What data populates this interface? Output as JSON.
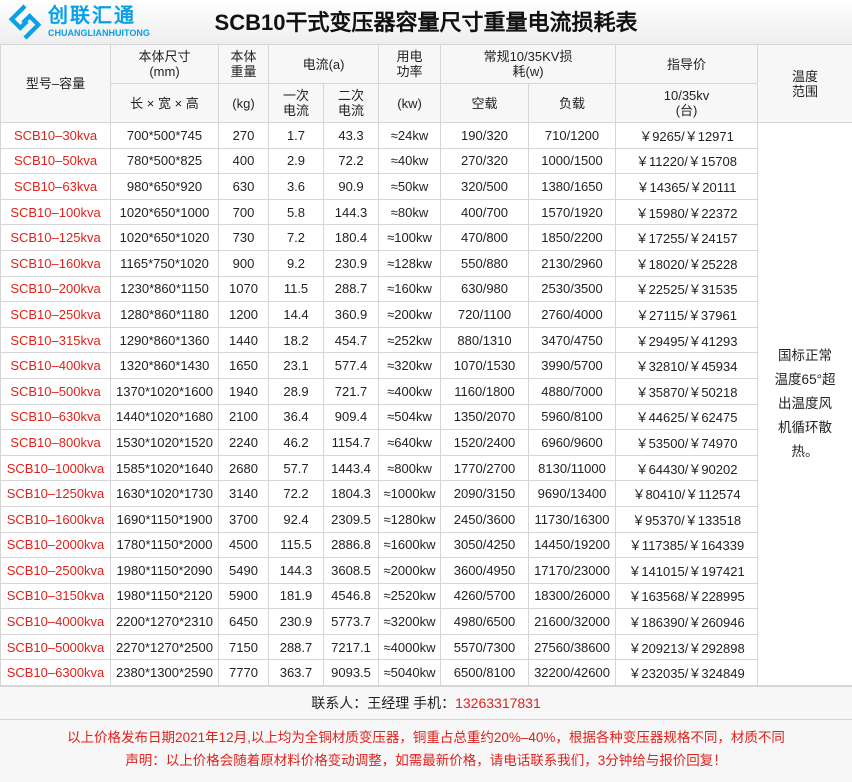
{
  "title": "SCB10干式变压器容量尺寸重量电流损耗表",
  "headers": {
    "model": "型号–容量",
    "size": "本体尺寸",
    "size_unit": "(mm)",
    "size_sub": "长 × 宽 × 高",
    "weight": "本体重量",
    "weight_unit": "(kg)",
    "current": "电流(a)",
    "current_primary": "一次电流",
    "current_secondary": "二次电流",
    "power": "用电功率",
    "power_unit": "(kw)",
    "loss": "常规10/35KV损耗(w)",
    "loss_noload": "空载",
    "loss_load": "负载",
    "price": "指导价",
    "price_sub": "10/35kv (台)",
    "temp": "温度范围"
  },
  "rows": [
    [
      "SCB10–30kva",
      "700*500*745",
      "270",
      "1.7",
      "43.3",
      "≈24kw",
      "190/320",
      "710/1200",
      "￥9265/￥12971"
    ],
    [
      "SCB10–50kva",
      "780*500*825",
      "400",
      "2.9",
      "72.2",
      "≈40kw",
      "270/320",
      "1000/1500",
      "￥11220/￥15708"
    ],
    [
      "SCB10–63kva",
      "980*650*920",
      "630",
      "3.6",
      "90.9",
      "≈50kw",
      "320/500",
      "1380/1650",
      "￥14365/￥20111"
    ],
    [
      "SCB10–100kva",
      "1020*650*1000",
      "700",
      "5.8",
      "144.3",
      "≈80kw",
      "400/700",
      "1570/1920",
      "￥15980/￥22372"
    ],
    [
      "SCB10–125kva",
      "1020*650*1020",
      "730",
      "7.2",
      "180.4",
      "≈100kw",
      "470/800",
      "1850/2200",
      "￥17255/￥24157"
    ],
    [
      "SCB10–160kva",
      "1165*750*1020",
      "900",
      "9.2",
      "230.9",
      "≈128kw",
      "550/880",
      "2130/2960",
      "￥18020/￥25228"
    ],
    [
      "SCB10–200kva",
      "1230*860*1150",
      "1070",
      "11.5",
      "288.7",
      "≈160kw",
      "630/980",
      "2530/3500",
      "￥22525/￥31535"
    ],
    [
      "SCB10–250kva",
      "1280*860*1180",
      "1200",
      "14.4",
      "360.9",
      "≈200kw",
      "720/1100",
      "2760/4000",
      "￥27115/￥37961"
    ],
    [
      "SCB10–315kva",
      "1290*860*1360",
      "1440",
      "18.2",
      "454.7",
      "≈252kw",
      "880/1310",
      "3470/4750",
      "￥29495/￥41293"
    ],
    [
      "SCB10–400kva",
      "1320*860*1430",
      "1650",
      "23.1",
      "577.4",
      "≈320kw",
      "1070/1530",
      "3990/5700",
      "￥32810/￥45934"
    ],
    [
      "SCB10–500kva",
      "1370*1020*1600",
      "1940",
      "28.9",
      "721.7",
      "≈400kw",
      "1160/1800",
      "4880/7000",
      "￥35870/￥50218"
    ],
    [
      "SCB10–630kva",
      "1440*1020*1680",
      "2100",
      "36.4",
      "909.4",
      "≈504kw",
      "1350/2070",
      "5960/8100",
      "￥44625/￥62475"
    ],
    [
      "SCB10–800kva",
      "1530*1020*1520",
      "2240",
      "46.2",
      "1154.7",
      "≈640kw",
      "1520/2400",
      "6960/9600",
      "￥53500/￥74970"
    ],
    [
      "SCB10–1000kva",
      "1585*1020*1640",
      "2680",
      "57.7",
      "1443.4",
      "≈800kw",
      "1770/2700",
      "8130/11000",
      "￥64430/￥90202"
    ],
    [
      "SCB10–1250kva",
      "1630*1020*1730",
      "3140",
      "72.2",
      "1804.3",
      "≈1000kw",
      "2090/3150",
      "9690/13400",
      "￥80410/￥112574"
    ],
    [
      "SCB10–1600kva",
      "1690*1150*1900",
      "3700",
      "92.4",
      "2309.5",
      "≈1280kw",
      "2450/3600",
      "11730/16300",
      "￥95370/￥133518"
    ],
    [
      "SCB10–2000kva",
      "1780*1150*2000",
      "4500",
      "115.5",
      "2886.8",
      "≈1600kw",
      "3050/4250",
      "14450/19200",
      "￥117385/￥164339"
    ],
    [
      "SCB10–2500kva",
      "1980*1150*2090",
      "5490",
      "144.3",
      "3608.5",
      "≈2000kw",
      "3600/4950",
      "17170/23000",
      "￥141015/￥197421"
    ],
    [
      "SCB10–3150kva",
      "1980*1150*2120",
      "5900",
      "181.9",
      "4546.8",
      "≈2520kw",
      "4260/5700",
      "18300/26000",
      "￥163568/￥228995"
    ],
    [
      "SCB10–4000kva",
      "2200*1270*2310",
      "6450",
      "230.9",
      "5773.7",
      "≈3200kw",
      "4980/6500",
      "21600/32000",
      "￥186390/￥260946"
    ],
    [
      "SCB10–5000kva",
      "2270*1270*2500",
      "7150",
      "288.7",
      "7217.1",
      "≈4000kw",
      "5570/7300",
      "27560/38600",
      "￥209213/￥292898"
    ],
    [
      "SCB10–6300kva",
      "2380*1300*2590",
      "7770",
      "363.7",
      "9093.5",
      "≈5040kw",
      "6500/8100",
      "32200/42600",
      "￥232035/￥324849"
    ]
  ],
  "temp_note": "国标正常温度65°超出温度风机循环散热。",
  "contact": {
    "label": "联系人：王经理  手机：",
    "phone": "13263317831"
  },
  "notice": [
    "以上价格发布日期2021年12月,以上均为全铜材质变压器，铜重占总重约20%–40%，根据各种变压器规格不同，材质不同",
    "声明：以上价格会随着原材料价格变动调整，如需最新价格，请电话联系我们，3分钟给与报价回复！"
  ],
  "watermark": {
    "text": "创联汇通",
    "sub": "CHUANGLIANHUITONG",
    "color": "#0aa0e6"
  },
  "colors": {
    "model": "#e0221c",
    "notice": "#e0221c"
  }
}
